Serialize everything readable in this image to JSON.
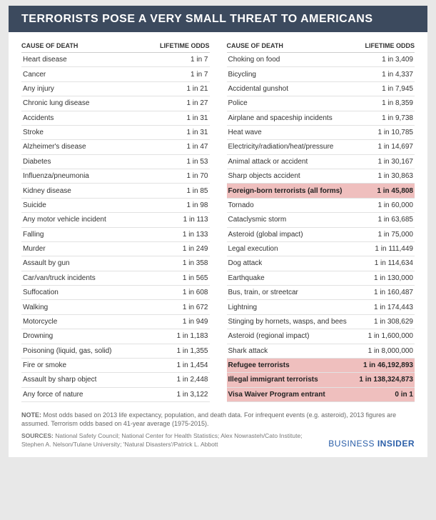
{
  "title": "TERRORISTS POSE A VERY SMALL THREAT TO AMERICANS",
  "col_header_cause": "CAUSE OF DEATH",
  "col_header_odds": "LIFETIME ODDS",
  "highlight_color": "#efbfbe",
  "left_rows": [
    {
      "cause": "Heart disease",
      "odds": "1 in 7"
    },
    {
      "cause": "Cancer",
      "odds": "1 in 7"
    },
    {
      "cause": "Any injury",
      "odds": "1 in 21"
    },
    {
      "cause": "Chronic lung disease",
      "odds": "1 in 27"
    },
    {
      "cause": "Accidents",
      "odds": "1 in 31"
    },
    {
      "cause": "Stroke",
      "odds": "1 in 31"
    },
    {
      "cause": "Alzheimer's disease",
      "odds": "1 in 47"
    },
    {
      "cause": "Diabetes",
      "odds": "1 in 53"
    },
    {
      "cause": "Influenza/pneumonia",
      "odds": "1 in 70"
    },
    {
      "cause": "Kidney disease",
      "odds": "1 in 85"
    },
    {
      "cause": "Suicide",
      "odds": "1 in 98"
    },
    {
      "cause": "Any motor vehicle incident",
      "odds": "1 in 113"
    },
    {
      "cause": "Falling",
      "odds": "1 in 133"
    },
    {
      "cause": "Murder",
      "odds": "1 in 249"
    },
    {
      "cause": "Assault by gun",
      "odds": "1 in 358"
    },
    {
      "cause": "Car/van/truck incidents",
      "odds": "1 in 565"
    },
    {
      "cause": "Suffocation",
      "odds": "1 in 608"
    },
    {
      "cause": "Walking",
      "odds": "1 in 672"
    },
    {
      "cause": "Motorcycle",
      "odds": "1 in 949"
    },
    {
      "cause": "Drowning",
      "odds": "1 in 1,183"
    },
    {
      "cause": "Poisoning (liquid, gas, solid)",
      "odds": "1 in 1,355"
    },
    {
      "cause": "Fire or smoke",
      "odds": "1 in 1,454"
    },
    {
      "cause": "Assault by sharp object",
      "odds": "1 in 2,448"
    },
    {
      "cause": "Any force of nature",
      "odds": "1 in 3,122"
    }
  ],
  "right_rows": [
    {
      "cause": "Choking on food",
      "odds": "1 in 3,409"
    },
    {
      "cause": "Bicycling",
      "odds": "1 in 4,337"
    },
    {
      "cause": "Accidental gunshot",
      "odds": "1 in 7,945"
    },
    {
      "cause": "Police",
      "odds": "1 in 8,359"
    },
    {
      "cause": "Airplane and spaceship incidents",
      "odds": "1 in 9,738"
    },
    {
      "cause": "Heat wave",
      "odds": "1 in 10,785"
    },
    {
      "cause": "Electricity/radiation/heat/pressure",
      "odds": "1 in 14,697"
    },
    {
      "cause": "Animal attack or accident",
      "odds": "1 in 30,167"
    },
    {
      "cause": "Sharp objects accident",
      "odds": "1 in 30,863"
    },
    {
      "cause": "Foreign-born terrorists (all forms)",
      "odds": "1 in 45,808",
      "highlight": true
    },
    {
      "cause": "Tornado",
      "odds": "1 in 60,000"
    },
    {
      "cause": "Cataclysmic storm",
      "odds": "1 in 63,685"
    },
    {
      "cause": "Asteroid (global impact)",
      "odds": "1 in 75,000"
    },
    {
      "cause": "Legal execution",
      "odds": "1 in 111,449"
    },
    {
      "cause": "Dog attack",
      "odds": "1 in 114,634"
    },
    {
      "cause": "Earthquake",
      "odds": "1 in 130,000"
    },
    {
      "cause": "Bus, train, or streetcar",
      "odds": "1 in 160,487"
    },
    {
      "cause": "Lightning",
      "odds": "1 in 174,443"
    },
    {
      "cause": "Stinging by hornets, wasps, and bees",
      "odds": "1 in 308,629"
    },
    {
      "cause": "Asteroid (regional impact)",
      "odds": "1 in 1,600,000"
    },
    {
      "cause": "Shark attack",
      "odds": "1 in 8,000,000"
    },
    {
      "cause": "Refugee terrorists",
      "odds": "1 in 46,192,893",
      "highlight": true
    },
    {
      "cause": "Illegal immigrant terrorists",
      "odds": "1 in 138,324,873",
      "highlight": true
    },
    {
      "cause": "Visa Waiver Program entrant",
      "odds": "0 in 1",
      "highlight": true
    }
  ],
  "note_label": "NOTE:",
  "note_text": " Most odds based on 2013 life expectancy, population, and death data. For infrequent events (e.g. asteroid), 2013 figures are assumed. Terrorism odds based on 41-year average (1975-2015).",
  "sources_label": "SOURCES:",
  "sources_text": " National Safety Council; National Center for Health Statistics; Alex Nowrasteh/Cato Institute; Stephen A. Nelson/Tulane University; 'Natural Disasters'/Patrick L. Abbott",
  "brand_name": "BUSINESS INSIDER"
}
